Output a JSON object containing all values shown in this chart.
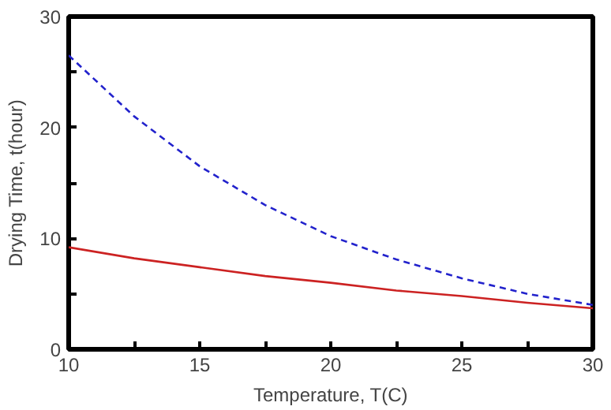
{
  "chart_data": {
    "type": "line",
    "xlabel": "Temperature, T(C)",
    "ylabel": "Drying Time, t(hour)",
    "x": [
      10,
      12.5,
      15,
      17.5,
      20,
      22.5,
      25,
      27.5,
      30
    ],
    "series": [
      {
        "color": "#2222cc",
        "line_style": "dashed",
        "values": [
          26.5,
          21,
          16.5,
          13.0,
          10.2,
          8.1,
          6.4,
          5.0,
          4.0
        ]
      },
      {
        "color": "#cc2222",
        "line_style": "solid",
        "values": [
          9.2,
          8.2,
          7.4,
          6.6,
          6.0,
          5.3,
          4.8,
          4.2,
          3.7
        ]
      }
    ],
    "xlim": [
      10,
      30
    ],
    "ylim": [
      0,
      30
    ],
    "xticks": [
      10,
      {
        "value": 12.5,
        "label": null
      },
      15,
      {
        "value": 17.5,
        "label": null
      },
      20,
      {
        "value": 22.5,
        "label": null
      },
      25,
      {
        "value": 27.5,
        "label": null
      },
      30
    ],
    "yticks": [
      0,
      {
        "value": 5,
        "label": null
      },
      10,
      {
        "value": 15,
        "label": null
      },
      20,
      {
        "value": 25,
        "label": null
      },
      30
    ],
    "grid": false,
    "marker": "none"
  }
}
